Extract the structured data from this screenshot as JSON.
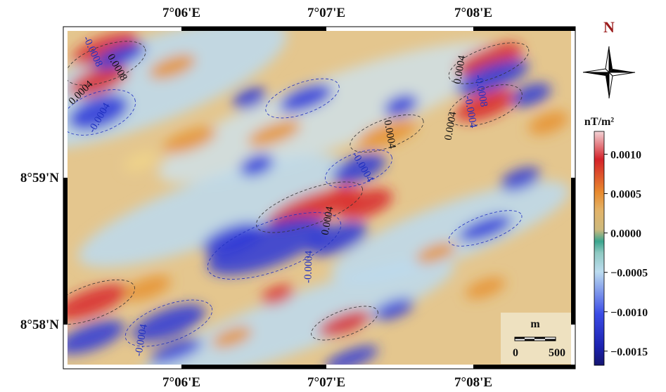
{
  "map": {
    "top_lon_labels": [
      "7°06'E",
      "7°07'E",
      "7°08'E"
    ],
    "bottom_lon_labels": [
      "7°06'E",
      "7°07'E",
      "7°08'E"
    ],
    "lat_labels": [
      "8°59'N",
      "8°58'N"
    ],
    "north_label": "N",
    "colorbar": {
      "unit": "nT/m²",
      "range": [
        -0.00168,
        0.00129
      ],
      "ticks": [
        {
          "value": 0.001,
          "label": "0.0010"
        },
        {
          "value": 0.0005,
          "label": "0.0005"
        },
        {
          "value": 0,
          "label": "0.0000"
        },
        {
          "value": -0.0005,
          "label": "−0.0005"
        },
        {
          "value": -0.001,
          "label": "−0.0010"
        },
        {
          "value": -0.0015,
          "label": "−0.0015"
        }
      ]
    },
    "scale_bar": {
      "unit": "m",
      "labels": [
        "0",
        "500"
      ]
    },
    "contour_labels": [
      "-0.0008",
      "0.0008",
      "0.0004",
      "-0.0004",
      "0.0004",
      "-0.0008",
      "0.0004",
      "-0.0004",
      "0.0004",
      "-0.0004",
      "0.0004",
      "-0.0004",
      "-0.0004"
    ]
  }
}
